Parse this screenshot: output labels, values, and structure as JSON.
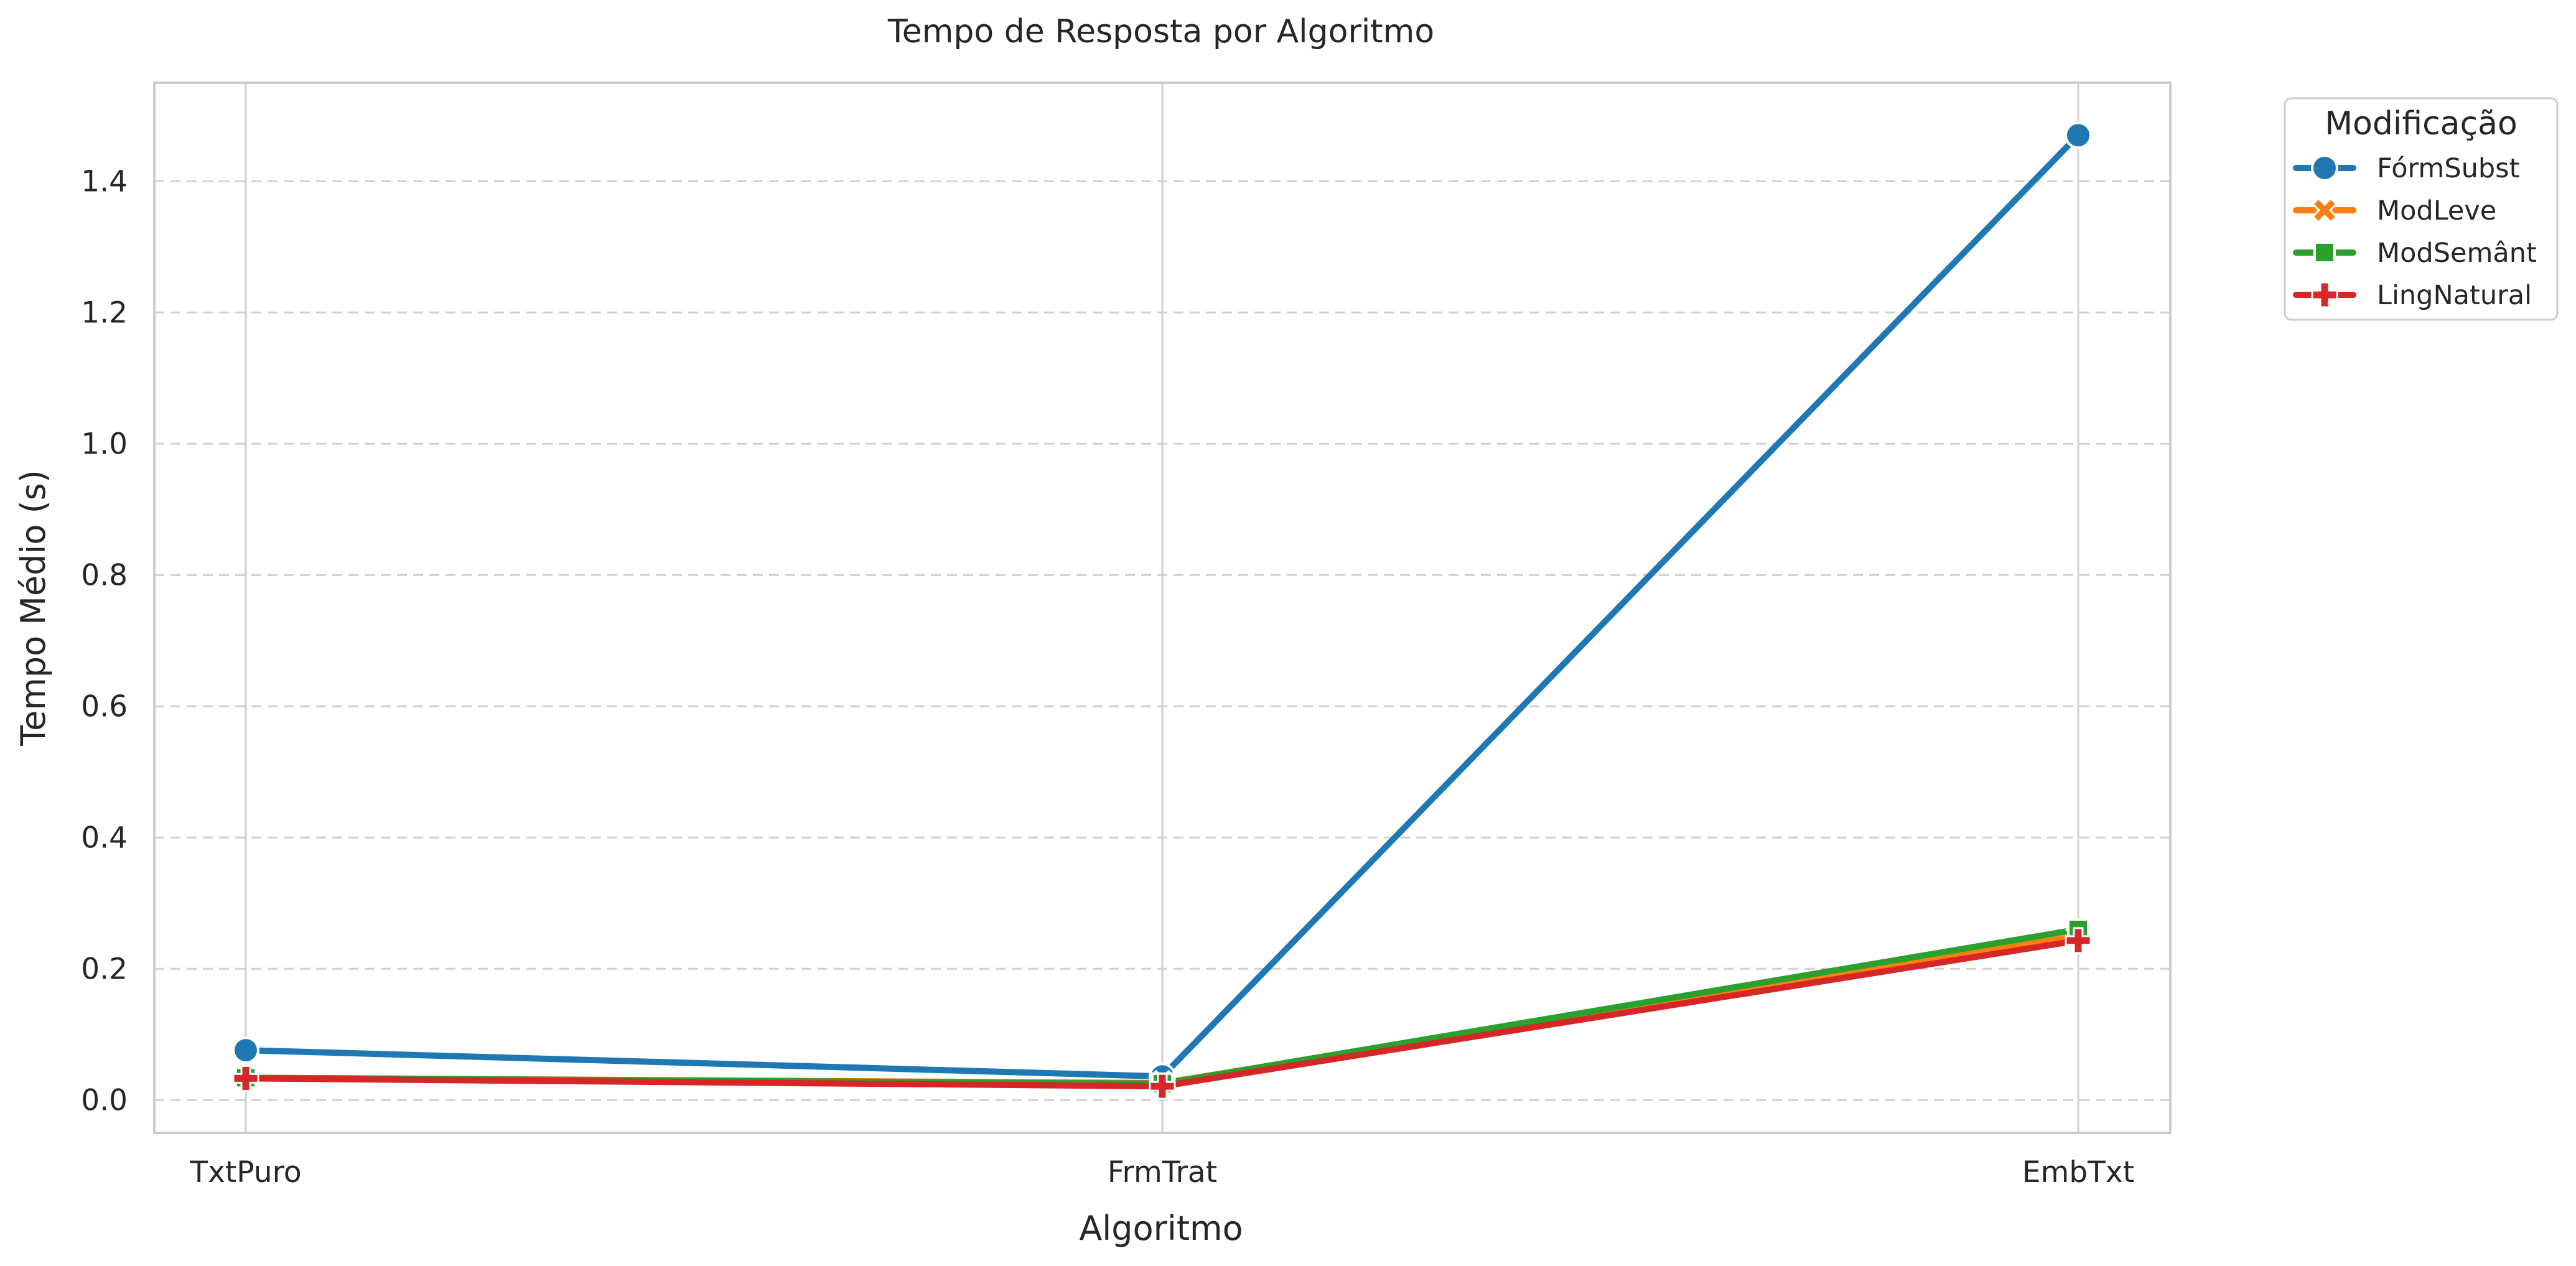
{
  "chart_data": {
    "type": "line",
    "title": "Tempo de Resposta por Algoritmo",
    "xlabel": "Algoritmo",
    "ylabel": "Tempo Médio (s)",
    "categories": [
      "TxtPuro",
      "FrmTrat",
      "EmbTxt"
    ],
    "ylim": [
      -0.05,
      1.55
    ],
    "yticks": [
      0.0,
      0.2,
      0.4,
      0.6,
      0.8,
      1.0,
      1.2,
      1.4
    ],
    "ytick_labels": [
      "0.0",
      "0.2",
      "0.4",
      "0.6",
      "0.8",
      "1.0",
      "1.2",
      "1.4"
    ],
    "grid": {
      "y": "dashed",
      "x": "solid"
    },
    "legend": {
      "title": "Modificação",
      "placement": "outside-top-right"
    },
    "series": [
      {
        "name": "FórmSubst",
        "color": "#1f77b4",
        "marker": "circle",
        "values": [
          0.076,
          0.036,
          1.47
        ]
      },
      {
        "name": "ModLeve",
        "color": "#ff7f0e",
        "marker": "x",
        "values": [
          0.034,
          0.026,
          0.25
        ]
      },
      {
        "name": "ModSemânt",
        "color": "#2ca02c",
        "marker": "square",
        "values": [
          0.034,
          0.025,
          0.26
        ]
      },
      {
        "name": "LingNatural",
        "color": "#d62728",
        "marker": "plus",
        "values": [
          0.033,
          0.021,
          0.243
        ]
      }
    ]
  }
}
